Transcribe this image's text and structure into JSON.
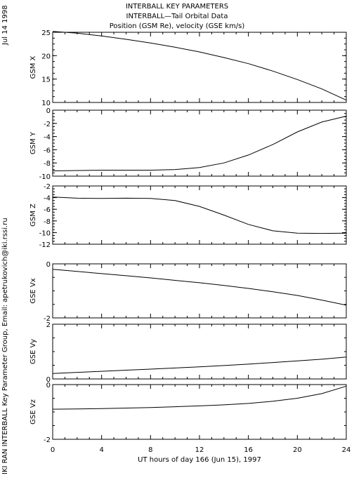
{
  "header": {
    "title": "INTERBALL KEY PARAMETERS",
    "subtitle": "INTERBALL—Tail Orbital Data",
    "subtitle2": "Position (GSM Re), velocity (GSE km/s)"
  },
  "side": {
    "date": "Jul 14 1998",
    "credit": "IKI RAN INTERBALL Key Parameter Group, Email: apetrukovich@iki.rssi.ru"
  },
  "chart_data": [
    {
      "type": "line",
      "ylabel": "GSM X",
      "ylim": [
        10,
        25
      ],
      "yticks": [
        10,
        15,
        20,
        25
      ],
      "x": [
        0,
        2,
        4,
        6,
        8,
        10,
        12,
        14,
        16,
        18,
        20,
        22,
        24
      ],
      "series": [
        {
          "values": [
            25.2,
            24.8,
            24.2,
            23.5,
            22.7,
            21.8,
            20.8,
            19.6,
            18.3,
            16.7,
            14.9,
            12.9,
            10.5
          ]
        }
      ]
    },
    {
      "type": "line",
      "ylabel": "GSM Y",
      "ylim": [
        -10,
        0
      ],
      "yticks": [
        -10,
        -8,
        -6,
        -4,
        -2,
        0
      ],
      "x": [
        0,
        2,
        4,
        6,
        8,
        10,
        12,
        14,
        16,
        18,
        20,
        22,
        24
      ],
      "series": [
        {
          "values": [
            -9.2,
            -9.15,
            -9.1,
            -9.1,
            -9.1,
            -9.0,
            -8.7,
            -8.0,
            -6.8,
            -5.2,
            -3.3,
            -1.8,
            -0.9
          ]
        }
      ]
    },
    {
      "type": "line",
      "ylabel": "GSM Z",
      "ylim": [
        -12,
        -2
      ],
      "yticks": [
        -12,
        -10,
        -8,
        -6,
        -4,
        -2
      ],
      "x": [
        0,
        2,
        4,
        6,
        8,
        10,
        12,
        14,
        16,
        18,
        20,
        22,
        24
      ],
      "series": [
        {
          "values": [
            -3.9,
            -4.1,
            -4.15,
            -4.1,
            -4.15,
            -4.5,
            -5.5,
            -7.0,
            -8.6,
            -9.7,
            -10.1,
            -10.15,
            -10.1
          ]
        }
      ]
    },
    {
      "type": "line",
      "ylabel": "GSE Vx",
      "ylim": [
        -2,
        0
      ],
      "yticks": [
        -2,
        0
      ],
      "x": [
        0,
        2,
        4,
        6,
        8,
        10,
        12,
        14,
        16,
        18,
        20,
        22,
        24
      ],
      "series": [
        {
          "values": [
            -0.2,
            -0.28,
            -0.36,
            -0.44,
            -0.52,
            -0.61,
            -0.7,
            -0.8,
            -0.91,
            -1.03,
            -1.17,
            -1.34,
            -1.53
          ]
        }
      ]
    },
    {
      "type": "line",
      "ylabel": "GSE Vy",
      "ylim": [
        0,
        2
      ],
      "yticks": [
        0,
        2
      ],
      "x": [
        0,
        2,
        4,
        6,
        8,
        10,
        12,
        14,
        16,
        18,
        20,
        22,
        24
      ],
      "series": [
        {
          "values": [
            0.2,
            0.24,
            0.28,
            0.32,
            0.36,
            0.4,
            0.44,
            0.49,
            0.54,
            0.6,
            0.66,
            0.72,
            0.8
          ]
        }
      ]
    },
    {
      "type": "line",
      "ylabel": "GSE Vz",
      "ylim": [
        -2,
        0
      ],
      "yticks": [
        -2,
        0
      ],
      "x": [
        0,
        2,
        4,
        6,
        8,
        10,
        12,
        14,
        16,
        18,
        20,
        22,
        24
      ],
      "series": [
        {
          "values": [
            -0.9,
            -0.89,
            -0.88,
            -0.86,
            -0.84,
            -0.81,
            -0.78,
            -0.74,
            -0.69,
            -0.61,
            -0.5,
            -0.33,
            -0.06
          ]
        }
      ]
    }
  ],
  "xaxis": {
    "label": "UT hours of day 166 (Jun 15), 1997",
    "range": [
      0,
      24
    ],
    "ticks": [
      0,
      4,
      8,
      12,
      16,
      20,
      24
    ]
  }
}
